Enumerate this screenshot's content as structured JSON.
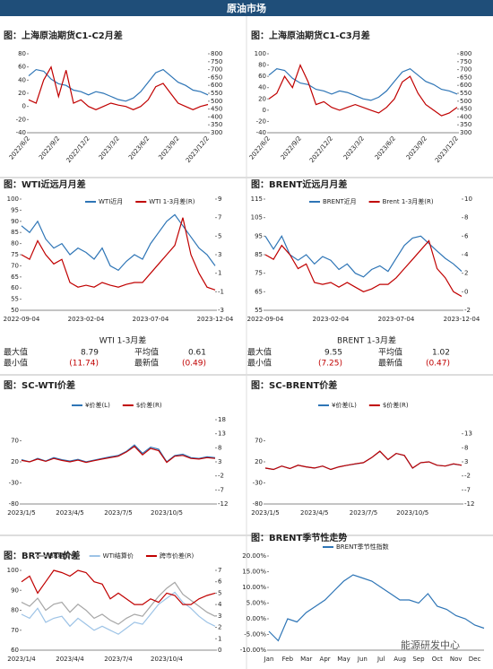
{
  "header": {
    "title": "原油市场"
  },
  "watermark": "能源研发中心",
  "chart_data": [
    {
      "type": "line",
      "title": "图：上海原油期货C1-C2月差",
      "categories": [
        "2022/6/2",
        null,
        null,
        null,
        "2022/9/2",
        null,
        null,
        null,
        "2022/12/2",
        null,
        null,
        null,
        "2023/3/2",
        null,
        null,
        null,
        "2023/6/2",
        null,
        null,
        null,
        "2023/9/2",
        null,
        null,
        null,
        "2023/12/2"
      ],
      "series": [
        {
          "color": "#2e75b6",
          "axis": "y2",
          "values": [
            660,
            700,
            690,
            640,
            610,
            600,
            570,
            560,
            540,
            560,
            550,
            530,
            510,
            500,
            520,
            560,
            620,
            680,
            700,
            660,
            620,
            600,
            570,
            560,
            540
          ]
        },
        {
          "color": "#c00000",
          "values": [
            10,
            5,
            40,
            60,
            15,
            55,
            5,
            10,
            0,
            -5,
            0,
            5,
            2,
            0,
            -5,
            0,
            10,
            30,
            35,
            20,
            5,
            0,
            -5,
            0,
            3
          ]
        }
      ],
      "ylim": [
        -40,
        80
      ],
      "yticks": [
        -40,
        -20,
        0,
        20,
        40,
        60,
        80
      ],
      "y2lim": [
        300,
        800
      ],
      "y2ticks": [
        300,
        350,
        400,
        450,
        500,
        550,
        600,
        650,
        700,
        750,
        800
      ]
    },
    {
      "type": "line",
      "title": "图：上海原油期货C1-C3月差",
      "categories": [
        "2022/6/2",
        null,
        null,
        null,
        "2022/9/2",
        null,
        null,
        null,
        "2022/12/2",
        null,
        null,
        null,
        "2023/3/2",
        null,
        null,
        null,
        "2023/6/2",
        null,
        null,
        null,
        "2023/9/2",
        null,
        null,
        null,
        "2023/12/2"
      ],
      "series": [
        {
          "color": "#2e75b6",
          "axis": "y2",
          "values": [
            665,
            705,
            695,
            645,
            615,
            605,
            575,
            565,
            545,
            565,
            555,
            535,
            515,
            505,
            525,
            565,
            625,
            685,
            705,
            665,
            625,
            605,
            575,
            565,
            545
          ]
        },
        {
          "color": "#c00000",
          "values": [
            20,
            30,
            60,
            40,
            80,
            50,
            10,
            15,
            5,
            0,
            5,
            10,
            5,
            0,
            -5,
            5,
            20,
            50,
            60,
            30,
            10,
            0,
            -10,
            -5,
            5
          ]
        }
      ],
      "ylim": [
        -40,
        100
      ],
      "yticks": [
        -40,
        -20,
        0,
        20,
        40,
        60,
        80,
        100
      ],
      "y2lim": [
        300,
        800
      ],
      "y2ticks": [
        300,
        350,
        400,
        450,
        500,
        550,
        600,
        650,
        700,
        750,
        800
      ]
    },
    {
      "type": "line",
      "title": "图：WTI近远月月差",
      "categories": [
        "2022-09-04",
        null,
        null,
        null,
        null,
        null,
        null,
        null,
        "2023-02-04",
        null,
        null,
        null,
        null,
        null,
        null,
        null,
        "2023-07-04",
        null,
        null,
        null,
        null,
        null,
        null,
        null,
        "2023-12-04"
      ],
      "series": [
        {
          "name": "WTI近月",
          "color": "#2e75b6",
          "values": [
            88,
            85,
            90,
            82,
            78,
            80,
            75,
            78,
            76,
            73,
            78,
            70,
            68,
            72,
            75,
            73,
            80,
            85,
            90,
            93,
            88,
            83,
            78,
            75,
            70
          ]
        },
        {
          "name": "WTI 1-3月差(R)",
          "color": "#c00000",
          "axis": "y2",
          "values": [
            3,
            2.5,
            4.5,
            3,
            2,
            2.5,
            0,
            -0.5,
            -0.3,
            -0.5,
            0,
            -0.3,
            -0.5,
            -0.2,
            0,
            0,
            1,
            2,
            3,
            4,
            7,
            3,
            1,
            -0.5,
            -0.8
          ]
        }
      ],
      "ylim": [
        50,
        100
      ],
      "yticks": [
        50,
        55,
        60,
        65,
        70,
        75,
        80,
        85,
        90,
        95,
        100
      ],
      "y2lim": [
        -3,
        9
      ],
      "y2ticks": [
        -3,
        -1,
        1,
        3,
        5,
        7,
        9
      ],
      "legend": "top"
    },
    {
      "type": "line",
      "title": "图：BRENT近远月月差",
      "categories": [
        "2022-09-04",
        null,
        null,
        null,
        null,
        null,
        null,
        null,
        "2023-02-04",
        null,
        null,
        null,
        null,
        null,
        null,
        null,
        "2023-07-04",
        null,
        null,
        null,
        null,
        null,
        null,
        null,
        "2023-12-04"
      ],
      "series": [
        {
          "name": "BRENT近月",
          "color": "#2e75b6",
          "values": [
            95,
            88,
            95,
            85,
            82,
            85,
            80,
            84,
            82,
            77,
            80,
            75,
            73,
            77,
            79,
            76,
            83,
            90,
            94,
            95,
            91,
            87,
            83,
            80,
            76
          ]
        },
        {
          "name": "Brent 1-3月差(R)",
          "color": "#c00000",
          "axis": "y2",
          "values": [
            4,
            3.5,
            5,
            4,
            2.5,
            3,
            1,
            0.8,
            1,
            0.5,
            1,
            0.5,
            0,
            0.3,
            0.8,
            0.8,
            1.5,
            2.5,
            3.5,
            4.5,
            5.5,
            2.5,
            1.5,
            0,
            -0.5
          ]
        }
      ],
      "ylim": [
        55,
        115
      ],
      "yticks": [
        55,
        65,
        75,
        85,
        95,
        105,
        115
      ],
      "y2lim": [
        -2,
        10
      ],
      "y2ticks": [
        -2,
        0,
        2,
        4,
        6,
        8,
        10
      ],
      "legend": "top"
    },
    {
      "type": "line",
      "title": "图：SC-WTI价差",
      "categories": [
        "2023/1/5",
        null,
        null,
        null,
        null,
        null,
        "2023/4/5",
        null,
        null,
        null,
        null,
        null,
        "2023/7/5",
        null,
        null,
        null,
        null,
        null,
        "2023/10/5",
        null,
        null,
        null,
        null,
        null,
        null
      ],
      "series": [
        {
          "name": "¥价差(L)",
          "color": "#2e75b6",
          "values": [
            25,
            20,
            28,
            22,
            30,
            25,
            22,
            26,
            20,
            24,
            28,
            32,
            35,
            45,
            60,
            40,
            55,
            50,
            20,
            35,
            38,
            30,
            28,
            32,
            30
          ]
        },
        {
          "name": "$价差(R)",
          "color": "#c00000",
          "axis": "y2",
          "values": [
            3.5,
            3,
            4,
            3.2,
            4.2,
            3.5,
            3,
            3.6,
            2.8,
            3.4,
            4,
            4.5,
            5,
            6.5,
            8.5,
            5.5,
            7.8,
            7,
            2.8,
            5,
            5.3,
            4.2,
            4,
            4.5,
            4.2
          ]
        }
      ],
      "ylim": [
        -80,
        120
      ],
      "yticks": [
        -80,
        -30,
        20,
        70
      ],
      "y2lim": [
        -12,
        18
      ],
      "y2ticks": [
        -12,
        -7,
        -2,
        3,
        8,
        13,
        18
      ],
      "legend": "top"
    },
    {
      "type": "line",
      "title": "图：SC-BRENT价差",
      "categories": [
        "2023/1/5",
        null,
        null,
        null,
        null,
        null,
        "2023/4/5",
        null,
        null,
        null,
        null,
        null,
        "2023/7/5",
        null,
        null,
        null,
        null,
        null,
        "2023/10/5",
        null,
        null,
        null,
        null,
        null,
        null
      ],
      "series": [
        {
          "name": "¥价差(L)",
          "color": "#2e75b6",
          "values": [
            5,
            2,
            10,
            4,
            12,
            8,
            5,
            10,
            2,
            8,
            12,
            15,
            18,
            30,
            45,
            25,
            40,
            35,
            5,
            18,
            20,
            12,
            10,
            15,
            12
          ]
        },
        {
          "name": "$价差(R)",
          "color": "#c00000",
          "axis": "y2",
          "values": [
            0.8,
            0.3,
            1.5,
            0.6,
            1.8,
            1.2,
            0.8,
            1.5,
            0.3,
            1.2,
            1.8,
            2.3,
            2.7,
            4.5,
            6.8,
            3.8,
            6,
            5.3,
            0.8,
            2.7,
            3,
            1.8,
            1.5,
            2.3,
            1.8
          ]
        }
      ],
      "ylim": [
        -80,
        120
      ],
      "yticks": [
        -80,
        -30,
        20,
        70
      ],
      "y2lim": [
        -12,
        18
      ],
      "y2ticks": [
        -12,
        -7,
        -2,
        3,
        8,
        13
      ],
      "legend": "top"
    },
    {
      "type": "line",
      "title": "图：BRT-WTI价差",
      "categories": [
        "2023/1/4",
        null,
        null,
        null,
        null,
        null,
        "2023/4/4",
        null,
        null,
        null,
        null,
        null,
        "2023/7/4",
        null,
        null,
        null,
        null,
        null,
        "2023/10/4",
        null,
        null,
        null,
        null,
        null,
        null
      ],
      "series": [
        {
          "name": "BR结算价",
          "color": "#a6a6a6",
          "values": [
            84,
            82,
            86,
            80,
            83,
            84,
            79,
            83,
            80,
            76,
            78,
            75,
            73,
            76,
            78,
            77,
            82,
            87,
            91,
            94,
            88,
            85,
            82,
            79,
            77
          ]
        },
        {
          "name": "WTI结算价",
          "color": "#9dc3e6",
          "values": [
            78,
            76,
            81,
            74,
            76,
            77,
            72,
            76,
            73,
            70,
            72,
            70,
            68,
            71,
            74,
            73,
            78,
            83,
            86,
            89,
            84,
            81,
            77,
            74,
            72
          ]
        },
        {
          "name": "跨市价差(R)",
          "color": "#c00000",
          "axis": "y2",
          "values": [
            6,
            6.5,
            5,
            6,
            7,
            6.8,
            6.5,
            7,
            6.8,
            6,
            5.8,
            4.5,
            5,
            4.5,
            4,
            4,
            4.5,
            4.2,
            5,
            4.8,
            4,
            4,
            4.5,
            4.8,
            5
          ]
        }
      ],
      "ylim": [
        60,
        100
      ],
      "yticks": [
        60,
        70,
        80,
        90,
        100
      ],
      "y2lim": [
        0,
        7
      ],
      "y2ticks": [
        0,
        1,
        2,
        3,
        4,
        5,
        6,
        7
      ],
      "legend": "top"
    },
    {
      "type": "line",
      "title": "图：BRENT季节性走势",
      "categories": [
        "Jan",
        null,
        "Feb",
        null,
        "Mar",
        null,
        "Apr",
        null,
        "May",
        null,
        "Jun",
        null,
        "Jul",
        null,
        "Aug",
        null,
        "Sep",
        null,
        "Oct",
        null,
        "Nov",
        null,
        "Dec",
        null
      ],
      "series": [
        {
          "name": "BRENT季节性指数",
          "color": "#2e75b6",
          "values": [
            -4,
            -7,
            0,
            -1,
            2,
            4,
            6,
            9,
            12,
            14,
            13,
            12,
            10,
            8,
            6,
            6,
            5,
            8,
            4,
            3,
            1,
            0,
            -2,
            -3
          ]
        }
      ],
      "ylim": [
        -10,
        20
      ],
      "yticks": [
        {
          "value": -10,
          "label": "-10.00%"
        },
        {
          "value": -5,
          "label": "-5.00%"
        },
        {
          "value": 0,
          "label": "0.00%"
        },
        {
          "value": 5,
          "label": "5.00%"
        },
        {
          "value": 10,
          "label": "10.00%"
        },
        {
          "value": 15,
          "label": "15.00%"
        },
        {
          "value": 20,
          "label": "20.00%"
        }
      ],
      "legend": "top"
    }
  ],
  "stats": [
    {
      "title": "WTI 1-3月差",
      "rows": [
        [
          "最大值",
          "8.79",
          "平均值",
          "0.61"
        ],
        [
          "最小值",
          "(11.74)",
          "最新值",
          "(0.49)"
        ]
      ]
    },
    {
      "title": "BRENT 1-3月差",
      "rows": [
        [
          "最大值",
          "9.55",
          "平均值",
          "1.02"
        ],
        [
          "最小值",
          "(7.25)",
          "最新值",
          "(0.47)"
        ]
      ]
    }
  ]
}
